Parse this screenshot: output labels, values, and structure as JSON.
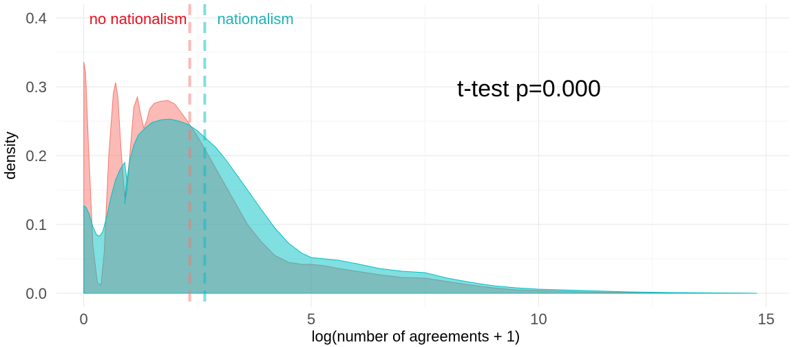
{
  "chart_data": {
    "type": "area",
    "title": "",
    "xlabel": "log(number of agreements + 1)",
    "ylabel": "density",
    "xlim": [
      -0.6,
      15.5
    ],
    "ylim": [
      -0.02,
      0.42
    ],
    "xticks": [
      0,
      5,
      10,
      15
    ],
    "xtick_labels": [
      "0",
      "5",
      "10",
      "15"
    ],
    "yticks": [
      0.0,
      0.1,
      0.2,
      0.3,
      0.4
    ],
    "ytick_labels": [
      "0.0",
      "0.1",
      "0.2",
      "0.3",
      "0.4"
    ],
    "grid": true,
    "legend": "none",
    "colors": {
      "no_nationalism": "#f8766d",
      "nationalism": "#00bfc4"
    },
    "series": [
      {
        "name": "no nationalism",
        "x": [
          0,
          0.04,
          0.1,
          0.2,
          0.3,
          0.38,
          0.45,
          0.55,
          0.65,
          0.7,
          0.75,
          0.82,
          0.9,
          1.0,
          1.1,
          1.18,
          1.25,
          1.32,
          1.38,
          1.45,
          1.55,
          1.7,
          1.85,
          2.0,
          2.15,
          2.3,
          2.5,
          2.7,
          3.0,
          3.3,
          3.6,
          3.9,
          4.2,
          4.5,
          4.8,
          5.0,
          5.3,
          5.6,
          6.0,
          6.5,
          7.0,
          7.5,
          8.0,
          8.5,
          9.0,
          9.5,
          10.0,
          10.5,
          11.0,
          11.5,
          12.0,
          12.5,
          13.0,
          13.5,
          14.0,
          14.5,
          14.8
        ],
        "values": [
          0.336,
          0.32,
          0.22,
          0.07,
          0.015,
          0.012,
          0.06,
          0.2,
          0.29,
          0.306,
          0.285,
          0.21,
          0.14,
          0.19,
          0.27,
          0.285,
          0.26,
          0.24,
          0.25,
          0.268,
          0.276,
          0.279,
          0.28,
          0.275,
          0.262,
          0.248,
          0.228,
          0.205,
          0.17,
          0.135,
          0.1,
          0.075,
          0.055,
          0.045,
          0.042,
          0.042,
          0.04,
          0.036,
          0.032,
          0.027,
          0.023,
          0.022,
          0.017,
          0.012,
          0.008,
          0.005,
          0.004,
          0.003,
          0.002,
          0.0015,
          0.001,
          0.0008,
          0.0005,
          0.0003,
          0.0002,
          0.0001,
          0
        ]
      },
      {
        "name": "nationalism",
        "x": [
          0,
          0.05,
          0.12,
          0.2,
          0.28,
          0.35,
          0.42,
          0.5,
          0.6,
          0.7,
          0.8,
          0.9,
          0.95,
          0.9,
          0.95,
          1.0,
          1.1,
          1.2,
          1.35,
          1.5,
          1.7,
          1.9,
          2.1,
          2.3,
          2.5,
          2.7,
          2.9,
          3.1,
          3.3,
          3.6,
          3.9,
          4.2,
          4.5,
          4.8,
          5.0,
          5.3,
          5.6,
          6.0,
          6.5,
          7.0,
          7.5,
          8.0,
          8.5,
          9.0,
          9.5,
          10.0,
          10.5,
          11.0,
          11.5,
          12.0,
          12.5,
          13.0,
          13.5,
          14.0,
          14.5,
          14.8
        ],
        "values": [
          0.127,
          0.125,
          0.115,
          0.097,
          0.085,
          0.083,
          0.09,
          0.11,
          0.14,
          0.165,
          0.18,
          0.19,
          0.165,
          0.13,
          0.15,
          0.19,
          0.215,
          0.23,
          0.24,
          0.248,
          0.252,
          0.253,
          0.25,
          0.245,
          0.236,
          0.224,
          0.212,
          0.196,
          0.178,
          0.15,
          0.122,
          0.095,
          0.073,
          0.058,
          0.052,
          0.05,
          0.048,
          0.043,
          0.036,
          0.032,
          0.03,
          0.022,
          0.016,
          0.011,
          0.008,
          0.006,
          0.005,
          0.004,
          0.003,
          0.002,
          0.0015,
          0.001,
          0.0008,
          0.0005,
          0.0002,
          0
        ]
      }
    ],
    "mean_lines": [
      {
        "name": "no nationalism",
        "x": 2.33
      },
      {
        "name": "nationalism",
        "x": 2.66
      }
    ],
    "annotations": {
      "label_no_nationalism": "no nationalism",
      "label_nationalism": "nationalism",
      "ttest": "t-test p=0.000"
    }
  }
}
